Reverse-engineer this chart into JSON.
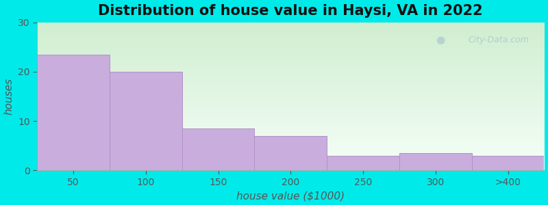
{
  "title": "Distribution of house value in Haysi, VA in 2022",
  "xlabel": "house value ($1000)",
  "ylabel": "houses",
  "categories": [
    "50",
    "100",
    "150",
    "200",
    "250",
    "300",
    ">400"
  ],
  "values": [
    23.5,
    20,
    8.5,
    7,
    3,
    3.5,
    3
  ],
  "ylim": [
    0,
    30
  ],
  "yticks": [
    0,
    10,
    20,
    30
  ],
  "bar_color": "#c9aedd",
  "bar_edge_color": "#b090c8",
  "bg_color_topleft": "#d8f0d8",
  "bg_color_bottomright": "#f5fff5",
  "figure_bg": "#00eaea",
  "title_fontsize": 15,
  "axis_label_fontsize": 11,
  "tick_fontsize": 10,
  "watermark_text": "City-Data.com",
  "bar_linewidth": 0.7
}
